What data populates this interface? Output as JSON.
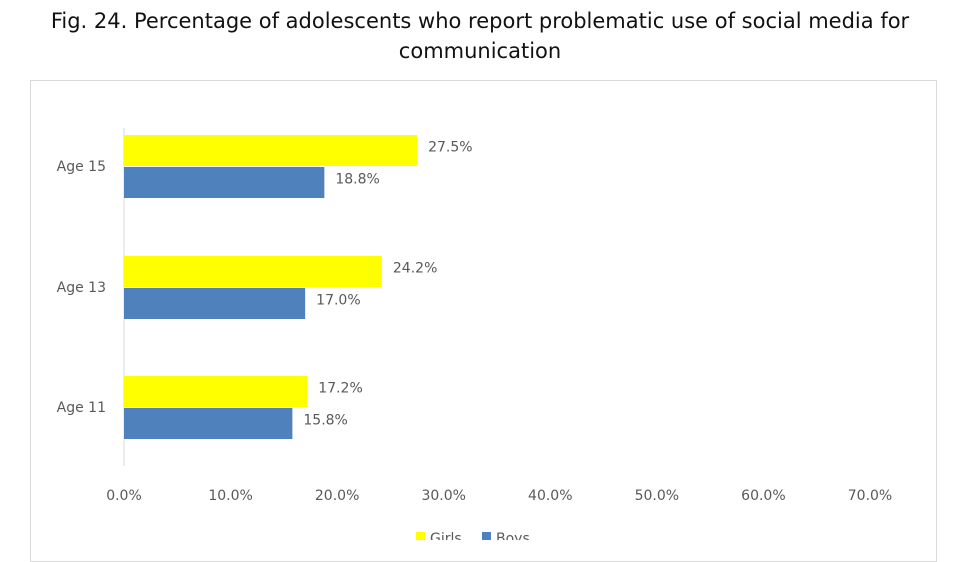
{
  "chart_data": {
    "type": "bar",
    "orientation": "horizontal",
    "title": "Fig. 24. Percentage of adolescents who report problematic use of social media for communication",
    "categories": [
      "Age 15",
      "Age 13",
      "Age 11"
    ],
    "series": [
      {
        "name": "Girls",
        "color": "#FFFF00",
        "values": [
          27.5,
          24.2,
          17.2
        ],
        "labels": [
          "27.5%",
          "24.2%",
          "17.2%"
        ]
      },
      {
        "name": "Boys",
        "color": "#4F81BD",
        "values": [
          18.8,
          17.0,
          15.8
        ],
        "labels": [
          "18.8%",
          "17.0%",
          "15.8%"
        ]
      }
    ],
    "xlim": [
      0,
      70
    ],
    "xticks": [
      "0.0%",
      "10.0%",
      "20.0%",
      "30.0%",
      "40.0%",
      "50.0%",
      "60.0%",
      "70.0%"
    ],
    "grid": false,
    "legend": "bottom"
  }
}
